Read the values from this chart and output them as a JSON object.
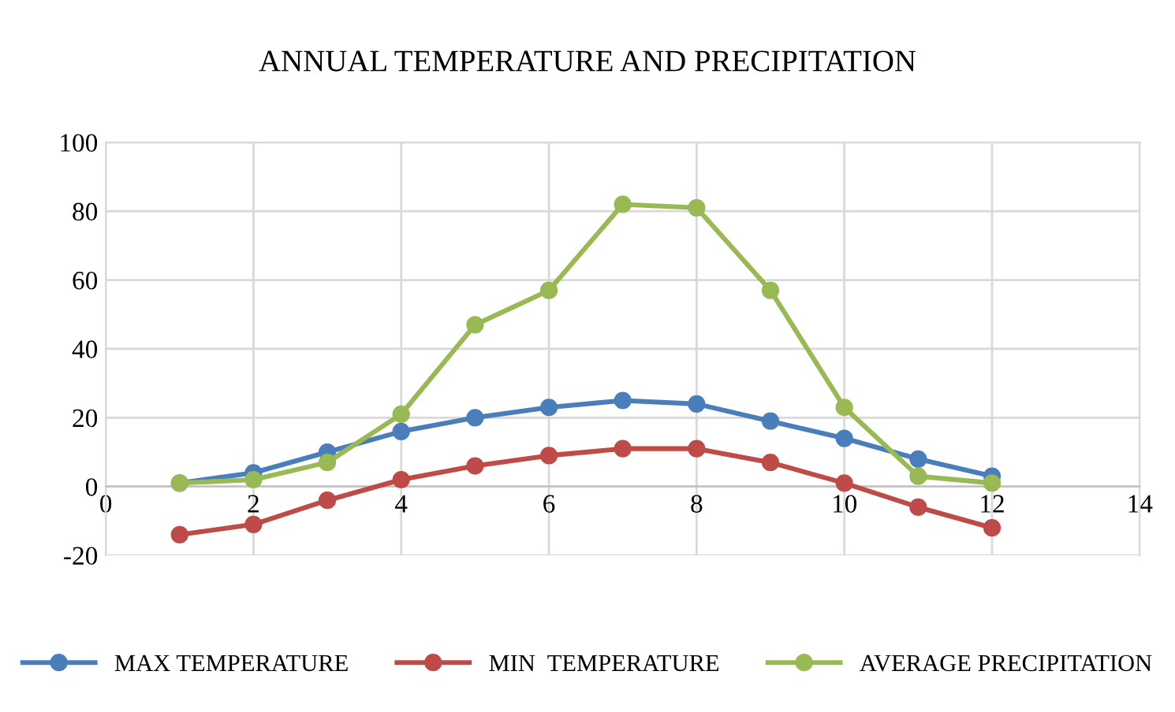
{
  "chart_data": {
    "type": "line",
    "title": "ANNUAL TEMPERATURE AND PRECIPITATION",
    "x": [
      1,
      2,
      3,
      4,
      5,
      6,
      7,
      8,
      9,
      10,
      11,
      12
    ],
    "series": [
      {
        "name": "MAX TEMPERATURE",
        "color": "#4a7ebb",
        "values": [
          1,
          4,
          10,
          16,
          20,
          23,
          25,
          24,
          19,
          14,
          8,
          3
        ]
      },
      {
        "name": "MIN  TEMPERATURE",
        "color": "#be4b48",
        "values": [
          -14,
          -11,
          -4,
          2,
          6,
          9,
          11,
          11,
          7,
          1,
          -6,
          -12
        ]
      },
      {
        "name": "AVERAGE PRECIPITATION",
        "color": "#98b954",
        "values": [
          1,
          2,
          7,
          21,
          47,
          57,
          82,
          81,
          57,
          23,
          3,
          1
        ]
      }
    ],
    "xlim": [
      0,
      14
    ],
    "xticks": [
      0,
      2,
      4,
      6,
      8,
      10,
      12,
      14
    ],
    "ylim": [
      -20,
      100
    ],
    "yticks": [
      -20,
      0,
      20,
      40,
      60,
      80,
      100
    ],
    "grid": true,
    "legend": "bottom",
    "marker": "circle",
    "line_style": "solid"
  }
}
